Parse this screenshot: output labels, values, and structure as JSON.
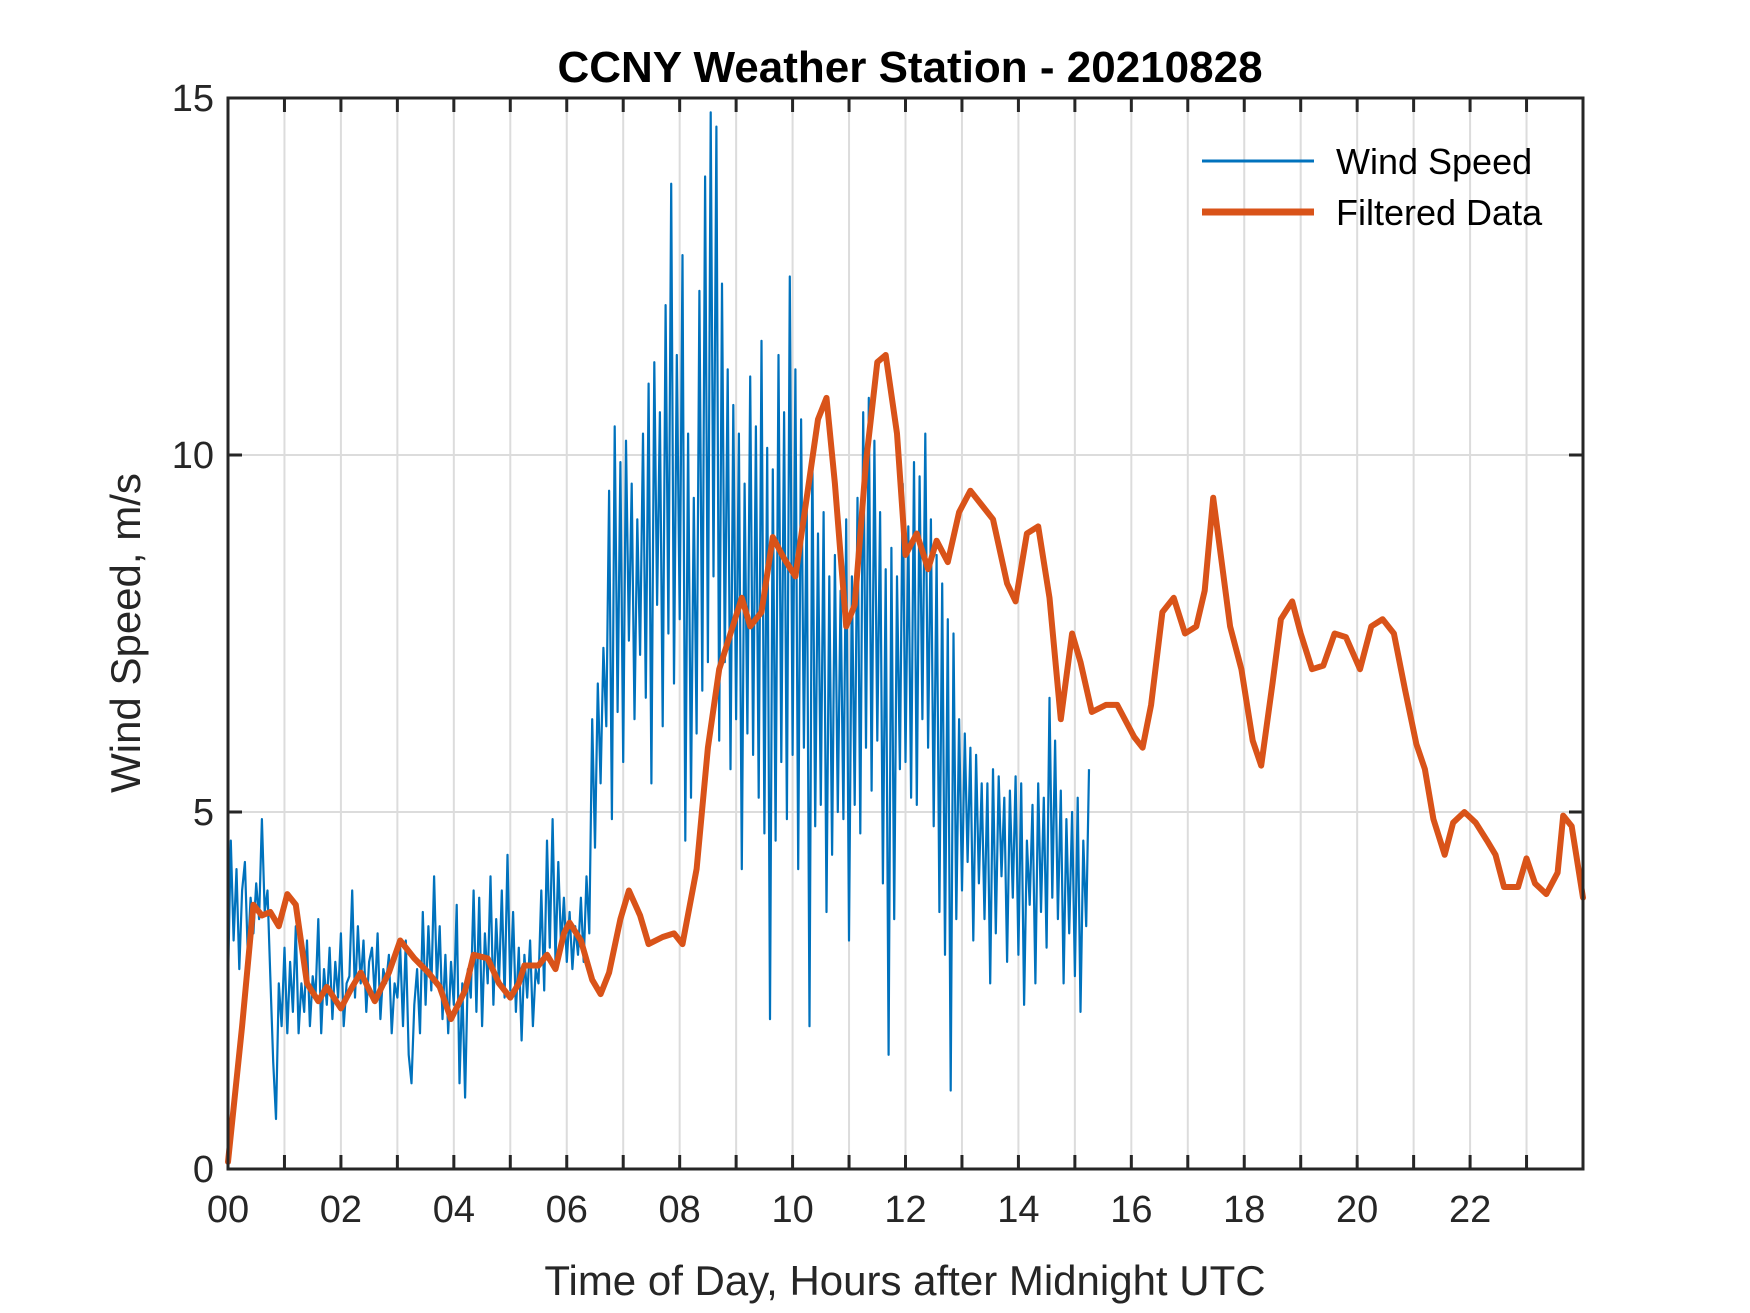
{
  "chart_data": {
    "type": "line",
    "title": "CCNY Weather Station - 20210828",
    "xlabel": "Time of Day, Hours after Midnight UTC",
    "ylabel": "Wind Speed, m/s",
    "xlim": [
      0,
      24
    ],
    "ylim": [
      0,
      15
    ],
    "xticks": [
      0,
      1,
      2,
      3,
      4,
      5,
      6,
      7,
      8,
      9,
      10,
      11,
      12,
      13,
      14,
      15,
      16,
      17,
      18,
      19,
      20,
      21,
      22,
      23
    ],
    "xtick_labels": [
      {
        "value": 0,
        "label": "00"
      },
      {
        "value": 2,
        "label": "02"
      },
      {
        "value": 4,
        "label": "04"
      },
      {
        "value": 6,
        "label": "06"
      },
      {
        "value": 8,
        "label": "08"
      },
      {
        "value": 10,
        "label": "10"
      },
      {
        "value": 12,
        "label": "12"
      },
      {
        "value": 14,
        "label": "14"
      },
      {
        "value": 16,
        "label": "16"
      },
      {
        "value": 18,
        "label": "18"
      },
      {
        "value": 20,
        "label": "20"
      },
      {
        "value": 22,
        "label": "22"
      }
    ],
    "yticks": [
      {
        "value": 0,
        "label": "0"
      },
      {
        "value": 5,
        "label": "5"
      },
      {
        "value": 10,
        "label": "10"
      },
      {
        "value": 15,
        "label": "15"
      }
    ],
    "grid": "on",
    "legend": {
      "placement": "top-right",
      "entries": [
        {
          "name": "Wind Speed",
          "color": "#0072BD"
        },
        {
          "name": "Filtered Data",
          "color": "#D95319"
        }
      ]
    },
    "series": [
      {
        "name": "Filtered Data",
        "color": "#D95319",
        "x": [
          0.0,
          0.25,
          0.45,
          0.6,
          0.75,
          0.9,
          1.05,
          1.2,
          1.4,
          1.6,
          1.75,
          2.0,
          2.2,
          2.35,
          2.6,
          2.85,
          3.05,
          3.3,
          3.55,
          3.75,
          3.95,
          4.2,
          4.35,
          4.6,
          4.8,
          5.0,
          5.15,
          5.25,
          5.5,
          5.65,
          5.8,
          5.95,
          6.05,
          6.25,
          6.45,
          6.6,
          6.75,
          6.95,
          7.1,
          7.3,
          7.45,
          7.7,
          7.9,
          8.05,
          8.3,
          8.5,
          8.7,
          8.9,
          9.1,
          9.25,
          9.45,
          9.65,
          9.85,
          10.05,
          10.25,
          10.45,
          10.6,
          10.75,
          10.95,
          11.1,
          11.3,
          11.5,
          11.65,
          11.85,
          12.0,
          12.2,
          12.4,
          12.55,
          12.75,
          12.95,
          13.15,
          13.35,
          13.55,
          13.8,
          13.95,
          14.15,
          14.35,
          14.55,
          14.75,
          14.95,
          15.1,
          15.3,
          15.55,
          15.75,
          16.05,
          16.2,
          16.35,
          16.55,
          16.75,
          16.95,
          17.15,
          17.3,
          17.45,
          17.6,
          17.75,
          17.95,
          18.15,
          18.3,
          18.5,
          18.65,
          18.85,
          19.0,
          19.2,
          19.4,
          19.6,
          19.8,
          20.05,
          20.25,
          20.45,
          20.65,
          20.85,
          21.05,
          21.2,
          21.35,
          21.55,
          21.7,
          21.9,
          22.1,
          22.3,
          22.45,
          22.6,
          22.85,
          23.0,
          23.15,
          23.35,
          23.55,
          23.65,
          23.8,
          24.0
        ],
        "y": [
          0.1,
          2.0,
          3.7,
          3.55,
          3.6,
          3.4,
          3.85,
          3.7,
          2.6,
          2.35,
          2.55,
          2.25,
          2.55,
          2.75,
          2.35,
          2.75,
          3.2,
          2.95,
          2.75,
          2.55,
          2.1,
          2.5,
          3.0,
          2.95,
          2.6,
          2.4,
          2.6,
          2.85,
          2.85,
          3.0,
          2.8,
          3.3,
          3.45,
          3.2,
          2.65,
          2.45,
          2.75,
          3.5,
          3.9,
          3.55,
          3.15,
          3.25,
          3.3,
          3.15,
          4.2,
          5.9,
          7.0,
          7.5,
          8.0,
          7.6,
          7.8,
          8.85,
          8.55,
          8.3,
          9.4,
          10.5,
          10.8,
          9.6,
          7.6,
          7.9,
          9.9,
          11.3,
          11.4,
          10.3,
          8.6,
          8.9,
          8.4,
          8.8,
          8.5,
          9.2,
          9.5,
          9.3,
          9.1,
          8.2,
          7.95,
          8.9,
          9.0,
          8.0,
          6.3,
          7.5,
          7.1,
          6.4,
          6.5,
          6.5,
          6.05,
          5.9,
          6.5,
          7.8,
          8.0,
          7.5,
          7.6,
          8.1,
          9.4,
          8.5,
          7.6,
          7.0,
          6.0,
          5.65,
          6.8,
          7.7,
          7.95,
          7.5,
          7.0,
          7.05,
          7.5,
          7.45,
          7.0,
          7.6,
          7.7,
          7.5,
          6.7,
          5.95,
          5.6,
          4.9,
          4.4,
          4.85,
          5.0,
          4.85,
          4.6,
          4.4,
          3.95,
          3.95,
          4.35,
          4.0,
          3.85,
          4.15,
          4.95,
          4.8,
          3.8
        ]
      },
      {
        "name": "Wind Speed",
        "color": "#0072BD",
        "x_start": 0,
        "x_step": 0.05,
        "y": [
          2.6,
          4.6,
          3.2,
          4.2,
          2.8,
          3.9,
          4.3,
          3.0,
          3.8,
          3.3,
          4.0,
          3.5,
          4.9,
          3.6,
          3.9,
          2.7,
          1.5,
          0.7,
          2.6,
          2.0,
          3.1,
          1.9,
          2.9,
          2.2,
          3.4,
          1.9,
          2.6,
          2.2,
          3.2,
          2.0,
          2.7,
          2.4,
          3.5,
          1.9,
          2.8,
          2.3,
          3.1,
          2.1,
          2.9,
          2.4,
          3.3,
          2.0,
          2.6,
          2.7,
          3.9,
          2.4,
          3.4,
          2.6,
          3.2,
          2.2,
          2.9,
          3.1,
          2.4,
          3.3,
          2.1,
          2.8,
          2.6,
          3.0,
          1.9,
          2.6,
          2.4,
          3.1,
          2.0,
          3.2,
          1.6,
          1.2,
          2.3,
          2.8,
          1.9,
          3.6,
          2.3,
          3.4,
          2.5,
          4.1,
          2.6,
          3.4,
          2.1,
          3.0,
          1.9,
          2.9,
          2.3,
          3.7,
          1.2,
          2.6,
          1.0,
          2.8,
          2.4,
          3.9,
          2.2,
          3.8,
          2.0,
          3.3,
          2.6,
          4.1,
          2.3,
          3.5,
          2.6,
          3.9,
          2.4,
          4.4,
          2.5,
          3.6,
          2.2,
          3.1,
          1.8,
          3.0,
          2.4,
          3.2,
          2.0,
          2.8,
          2.6,
          3.9,
          2.5,
          4.6,
          3.1,
          4.9,
          2.9,
          4.3,
          3.1,
          3.8,
          2.9,
          3.6,
          2.8,
          3.4,
          3.0,
          3.8,
          2.9,
          4.1,
          3.3,
          6.3,
          4.5,
          6.8,
          5.4,
          7.3,
          6.2,
          9.5,
          4.9,
          10.4,
          6.4,
          9.9,
          5.7,
          10.2,
          7.4,
          9.6,
          6.3,
          9.1,
          7.2,
          10.3,
          6.6,
          11.0,
          5.4,
          11.3,
          7.9,
          10.6,
          6.2,
          12.1,
          7.5,
          13.8,
          6.8,
          11.4,
          7.7,
          12.8,
          4.6,
          10.3,
          5.2,
          9.4,
          6.1,
          12.3,
          6.7,
          13.9,
          7.1,
          14.8,
          8.3,
          14.6,
          6.0,
          12.4,
          7.1,
          11.2,
          5.6,
          10.7,
          6.3,
          10.3,
          4.2,
          9.6,
          6.1,
          11.1,
          5.8,
          10.4,
          5.2,
          11.6,
          4.7,
          10.1,
          2.1,
          9.8,
          4.6,
          11.4,
          5.7,
          10.6,
          4.9,
          12.5,
          5.8,
          11.2,
          4.2,
          10.5,
          5.9,
          9.4,
          2.0,
          10.1,
          4.8,
          8.9,
          5.1,
          9.2,
          3.6,
          8.3,
          4.4,
          8.6,
          5.0,
          8.1,
          4.9,
          9.1,
          3.2,
          8.3,
          5.1,
          9.4,
          4.7,
          10.6,
          5.9,
          10.8,
          5.3,
          10.2,
          6.0,
          9.2,
          4.0,
          8.4,
          1.6,
          8.7,
          3.5,
          8.3,
          5.6,
          9.6,
          5.7,
          9.0,
          5.2,
          9.9,
          5.1,
          9.7,
          6.3,
          10.3,
          5.9,
          9.1,
          4.8,
          8.6,
          3.6,
          8.2,
          3.0,
          7.7,
          1.1,
          7.5,
          3.5,
          6.3,
          3.9,
          6.1,
          4.3,
          5.9,
          3.2,
          5.8,
          4.0,
          5.4,
          3.5,
          5.4,
          2.6,
          5.6,
          3.3,
          5.5,
          4.1,
          5.2,
          2.9,
          5.3,
          3.8,
          5.5,
          3.0,
          5.4,
          2.3,
          4.6,
          3.7,
          5.1,
          2.6,
          5.4,
          3.6,
          5.2,
          3.1,
          6.6,
          3.8,
          6.0,
          3.5,
          5.3,
          2.6,
          4.9,
          3.3,
          5.0,
          2.7,
          5.2,
          2.2,
          4.6,
          3.4,
          5.6
        ]
      }
    ]
  }
}
